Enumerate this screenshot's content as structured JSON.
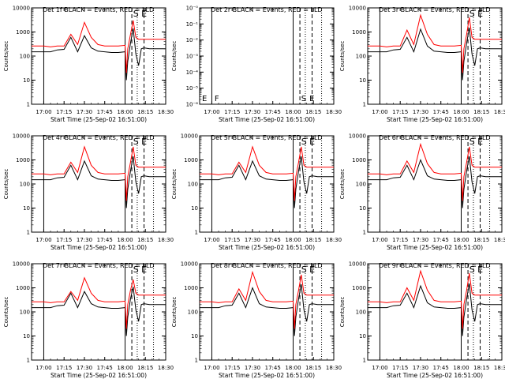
{
  "figure": {
    "xlabel": "Start Time (25-Sep-02 16:51:00)",
    "ylabel": "Counts/sec",
    "x_tick_labels": [
      "17:00",
      "17:15",
      "17:30",
      "17:45",
      "18:00",
      "18:15",
      "18:30"
    ],
    "y_tick_labels": [
      "1",
      "10",
      "100",
      "1000",
      "10000"
    ],
    "det2_y_tick_labels": [
      "10⁻⁰",
      "10⁻¹",
      "10⁻²",
      "10⁻³",
      "10⁻⁴",
      "10⁻⁵",
      "10⁻⁶"
    ],
    "colors": {
      "events": "#000000",
      "lld": "#ff0000"
    }
  },
  "chart_data": [
    {
      "type": "line",
      "title": "Det 1f BLACK = Events, RED = LLD",
      "x": [
        "16:51",
        "17:00",
        "17:05",
        "17:10",
        "17:15",
        "17:20",
        "17:25",
        "17:30",
        "17:35",
        "17:40",
        "17:45",
        "17:50",
        "17:55",
        "18:00",
        "18:01",
        "18:02",
        "18:04",
        "18:06",
        "18:08",
        "18:10",
        "18:12",
        "18:14",
        "18:18",
        "18:24",
        "18:30"
      ],
      "series": [
        {
          "name": "Events",
          "values": [
            150,
            150,
            150,
            180,
            190,
            600,
            150,
            700,
            220,
            160,
            150,
            140,
            140,
            150,
            10,
            60,
            350,
            1400,
            120,
            40,
            200,
            220,
            200,
            200,
            200
          ]
        },
        {
          "name": "LLD",
          "values": [
            260,
            260,
            240,
            260,
            260,
            800,
            300,
            2500,
            600,
            300,
            260,
            260,
            260,
            280,
            20,
            200,
            800,
            3000,
            600,
            500,
            500,
            500,
            500,
            500,
            500
          ]
        }
      ],
      "annotations": [
        "S",
        "E"
      ],
      "ylim": [
        1,
        10000
      ],
      "yscale": "log"
    },
    {
      "type": "line",
      "title": "Det 2r BLACK = Events, RED = LLD",
      "x": [
        "16:51",
        "18:30"
      ],
      "series": [],
      "annotations": [
        "F",
        "S",
        "E"
      ],
      "ylim": [
        1e-06,
        1
      ],
      "yscale": "log"
    },
    {
      "type": "line",
      "title": "Det 3r BLACK = Events, RED = LLD",
      "x": [
        "16:51",
        "17:00",
        "17:05",
        "17:10",
        "17:15",
        "17:20",
        "17:25",
        "17:30",
        "17:35",
        "17:40",
        "17:45",
        "17:50",
        "17:55",
        "18:00",
        "18:01",
        "18:02",
        "18:04",
        "18:06",
        "18:08",
        "18:10",
        "18:12",
        "18:14",
        "18:18",
        "18:24",
        "18:30"
      ],
      "series": [
        {
          "name": "Events",
          "values": [
            150,
            150,
            150,
            180,
            190,
            600,
            150,
            1300,
            260,
            160,
            150,
            140,
            140,
            150,
            10,
            60,
            350,
            1500,
            120,
            40,
            200,
            220,
            200,
            200,
            200
          ]
        },
        {
          "name": "LLD",
          "values": [
            260,
            260,
            240,
            260,
            260,
            1200,
            300,
            5000,
            800,
            300,
            260,
            260,
            260,
            280,
            20,
            200,
            800,
            4000,
            600,
            500,
            500,
            500,
            500,
            500,
            500
          ]
        }
      ],
      "annotations": [
        "S",
        "E"
      ],
      "ylim": [
        1,
        10000
      ],
      "yscale": "log"
    },
    {
      "type": "line",
      "title": "Det 4r BLACK = Events, RED = LLD",
      "x": [
        "16:51",
        "17:00",
        "17:05",
        "17:10",
        "17:15",
        "17:20",
        "17:25",
        "17:30",
        "17:35",
        "17:40",
        "17:45",
        "17:50",
        "17:55",
        "18:00",
        "18:01",
        "18:02",
        "18:04",
        "18:06",
        "18:08",
        "18:10",
        "18:12",
        "18:14",
        "18:18",
        "18:24",
        "18:30"
      ],
      "series": [
        {
          "name": "Events",
          "values": [
            150,
            150,
            150,
            180,
            190,
            600,
            150,
            900,
            220,
            160,
            150,
            140,
            140,
            150,
            10,
            60,
            350,
            1400,
            120,
            40,
            200,
            220,
            200,
            200,
            200
          ]
        },
        {
          "name": "LLD",
          "values": [
            260,
            260,
            240,
            260,
            260,
            800,
            300,
            3500,
            600,
            300,
            260,
            260,
            260,
            280,
            20,
            200,
            800,
            3500,
            600,
            500,
            500,
            500,
            500,
            500,
            500
          ]
        }
      ],
      "annotations": [
        "S",
        "E"
      ],
      "ylim": [
        1,
        10000
      ],
      "yscale": "log"
    },
    {
      "type": "line",
      "title": "Det 5r BLACK = Events, RED = LLD",
      "x": [
        "16:51",
        "17:00",
        "17:05",
        "17:10",
        "17:15",
        "17:20",
        "17:25",
        "17:30",
        "17:35",
        "17:40",
        "17:45",
        "17:50",
        "17:55",
        "18:00",
        "18:01",
        "18:02",
        "18:04",
        "18:06",
        "18:08",
        "18:10",
        "18:12",
        "18:14",
        "18:18",
        "18:24",
        "18:30"
      ],
      "series": [
        {
          "name": "Events",
          "values": [
            150,
            150,
            150,
            180,
            190,
            600,
            150,
            900,
            220,
            160,
            150,
            140,
            140,
            150,
            10,
            60,
            350,
            1400,
            120,
            40,
            200,
            220,
            200,
            200,
            200
          ]
        },
        {
          "name": "LLD",
          "values": [
            260,
            260,
            240,
            260,
            260,
            800,
            300,
            3500,
            600,
            300,
            260,
            260,
            260,
            280,
            20,
            200,
            800,
            3500,
            600,
            500,
            500,
            500,
            500,
            500,
            500
          ]
        }
      ],
      "annotations": [
        "S",
        "E"
      ],
      "ylim": [
        1,
        10000
      ],
      "yscale": "log"
    },
    {
      "type": "line",
      "title": "Det 6r BLACK = Events, RED = LLD",
      "x": [
        "16:51",
        "17:00",
        "17:05",
        "17:10",
        "17:15",
        "17:20",
        "17:25",
        "17:30",
        "17:35",
        "17:40",
        "17:45",
        "17:50",
        "17:55",
        "18:00",
        "18:01",
        "18:02",
        "18:04",
        "18:06",
        "18:08",
        "18:10",
        "18:12",
        "18:14",
        "18:18",
        "18:24",
        "18:30"
      ],
      "series": [
        {
          "name": "Events",
          "values": [
            150,
            150,
            150,
            180,
            190,
            600,
            150,
            1000,
            220,
            160,
            150,
            140,
            140,
            150,
            10,
            60,
            350,
            1400,
            120,
            40,
            200,
            220,
            200,
            200,
            200
          ]
        },
        {
          "name": "LLD",
          "values": [
            260,
            260,
            240,
            260,
            260,
            900,
            300,
            4500,
            700,
            300,
            260,
            260,
            260,
            280,
            20,
            200,
            800,
            3500,
            600,
            500,
            500,
            500,
            500,
            500,
            500
          ]
        }
      ],
      "annotations": [
        "S",
        "E"
      ],
      "ylim": [
        1,
        10000
      ],
      "yscale": "log"
    },
    {
      "type": "line",
      "title": "Det 7r BLACK = Events, RED = LLD",
      "x": [
        "16:51",
        "17:00",
        "17:05",
        "17:10",
        "17:15",
        "17:20",
        "17:25",
        "17:30",
        "17:35",
        "17:40",
        "17:45",
        "17:50",
        "17:55",
        "18:00",
        "18:01",
        "18:02",
        "18:04",
        "18:06",
        "18:08",
        "18:10",
        "18:12",
        "18:14",
        "18:18",
        "18:24",
        "18:30"
      ],
      "series": [
        {
          "name": "Events",
          "values": [
            150,
            150,
            150,
            180,
            190,
            600,
            150,
            700,
            220,
            160,
            150,
            140,
            140,
            150,
            10,
            60,
            350,
            1100,
            120,
            40,
            200,
            220,
            200,
            200,
            200
          ]
        },
        {
          "name": "LLD",
          "values": [
            260,
            260,
            240,
            260,
            260,
            700,
            300,
            2600,
            600,
            300,
            260,
            260,
            260,
            280,
            20,
            200,
            800,
            2200,
            600,
            500,
            500,
            500,
            500,
            500,
            500
          ]
        }
      ],
      "annotations": [
        "S",
        "E"
      ],
      "ylim": [
        1,
        10000
      ],
      "yscale": "log"
    },
    {
      "type": "line",
      "title": "Det 8r BLACK = Events, RED = LLD",
      "x": [
        "16:51",
        "17:00",
        "17:05",
        "17:10",
        "17:15",
        "17:20",
        "17:25",
        "17:30",
        "17:35",
        "17:40",
        "17:45",
        "17:50",
        "17:55",
        "18:00",
        "18:01",
        "18:02",
        "18:04",
        "18:06",
        "18:08",
        "18:10",
        "18:12",
        "18:14",
        "18:18",
        "18:24",
        "18:30"
      ],
      "series": [
        {
          "name": "Events",
          "values": [
            150,
            150,
            150,
            180,
            190,
            600,
            150,
            1000,
            220,
            160,
            150,
            140,
            140,
            150,
            10,
            60,
            350,
            1400,
            120,
            40,
            200,
            220,
            200,
            200,
            200
          ]
        },
        {
          "name": "LLD",
          "values": [
            260,
            260,
            240,
            260,
            260,
            900,
            300,
            4500,
            700,
            300,
            260,
            260,
            260,
            280,
            20,
            200,
            800,
            3500,
            600,
            500,
            500,
            500,
            500,
            500,
            500
          ]
        }
      ],
      "annotations": [
        "S",
        "E"
      ],
      "ylim": [
        1,
        10000
      ],
      "yscale": "log"
    },
    {
      "type": "line",
      "title": "Det 9r BLACK = Events, RED = LLD",
      "x": [
        "16:51",
        "17:00",
        "17:05",
        "17:10",
        "17:15",
        "17:20",
        "17:25",
        "17:30",
        "17:35",
        "17:40",
        "17:45",
        "17:50",
        "17:55",
        "18:00",
        "18:01",
        "18:02",
        "18:04",
        "18:06",
        "18:08",
        "18:10",
        "18:12",
        "18:14",
        "18:18",
        "18:24",
        "18:30"
      ],
      "series": [
        {
          "name": "Events",
          "values": [
            150,
            150,
            150,
            180,
            190,
            600,
            150,
            1200,
            240,
            160,
            150,
            140,
            140,
            150,
            10,
            60,
            350,
            1500,
            120,
            40,
            200,
            220,
            200,
            200,
            200
          ]
        },
        {
          "name": "LLD",
          "values": [
            260,
            260,
            240,
            260,
            260,
            1000,
            300,
            5000,
            800,
            300,
            260,
            260,
            260,
            280,
            20,
            200,
            800,
            4000,
            600,
            500,
            500,
            500,
            500,
            500,
            500
          ]
        }
      ],
      "annotations": [
        "S",
        "E"
      ],
      "ylim": [
        1,
        10000
      ],
      "yscale": "log"
    }
  ]
}
